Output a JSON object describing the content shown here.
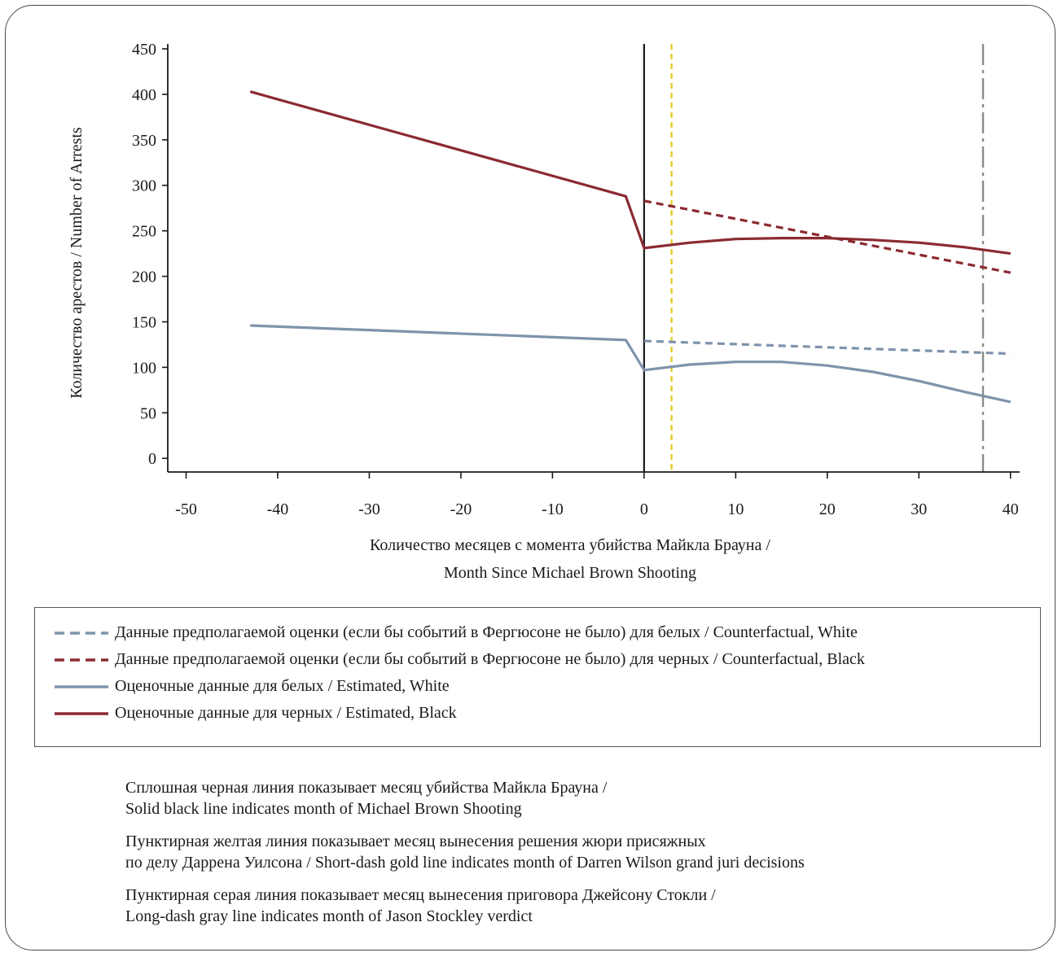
{
  "chart_data": {
    "type": "line",
    "ylabel": "Количество арестов / Number of Arrests",
    "xlabel_line1": "Количество месяцев с момента убийства Майкла Брауна /",
    "xlabel_line2": "Month Since Michael Brown Shooting",
    "xlim": [
      -52,
      41
    ],
    "ylim": [
      -15,
      450
    ],
    "x_ticks": [
      -50,
      -40,
      -30,
      -20,
      -10,
      0,
      10,
      20,
      30,
      40
    ],
    "x_tick_labels": [
      "-50",
      "-40",
      "-30",
      "-20",
      "-10",
      "0",
      "10",
      "20",
      "30",
      "40"
    ],
    "y_ticks": [
      0,
      50,
      100,
      150,
      200,
      250,
      300,
      350,
      400,
      450
    ],
    "y_tick_labels": [
      "0",
      "50",
      "100",
      "150",
      "200",
      "250",
      "300",
      "350",
      "400",
      "450"
    ],
    "series": [
      {
        "name": "Данные предполагаемой оценки (если бы событий в Фергюсоне не было) для белых / Counterfactual, White",
        "style": "dashed",
        "color": "#7f93ab",
        "x": [
          0,
          40
        ],
        "y": [
          129,
          115
        ]
      },
      {
        "name": "Данные предполагаемой оценки (если бы событий в Фергюсоне не было) для черных / Counterfactual, Black",
        "style": "dashed",
        "color": "#8b2a32",
        "x": [
          0,
          40
        ],
        "y": [
          283,
          204
        ]
      },
      {
        "name": "Оценочные данные для белых / Estimated, White",
        "style": "solid",
        "color": "#7f93ab",
        "x": [
          -43,
          -2,
          0,
          5,
          10,
          15,
          20,
          25,
          30,
          35,
          40
        ],
        "y": [
          146,
          130,
          97,
          103,
          106,
          106,
          102,
          95,
          85,
          73,
          62
        ]
      },
      {
        "name": "Оценочные данные для черных / Estimated, Black",
        "style": "solid",
        "color": "#8b2a32",
        "x": [
          -43,
          -2,
          0,
          5,
          10,
          15,
          20,
          25,
          30,
          35,
          40
        ],
        "y": [
          403,
          288,
          231,
          237,
          241,
          242,
          242,
          240,
          237,
          232,
          225
        ]
      }
    ],
    "reference_lines": [
      {
        "x": 0,
        "style": "solid",
        "color": "#1a1a1a"
      },
      {
        "x": 3,
        "style": "short-dash",
        "color": "#e3cc2a"
      },
      {
        "x": 37,
        "style": "long-dash",
        "color": "#8a8a8a"
      }
    ],
    "grid": false,
    "legend_position": "below"
  },
  "notes": [
    {
      "line1": "Сплошная черная линия показывает месяц убийства Майкла Брауна /",
      "line2": "Solid black line indicates month of Michael Brown Shooting"
    },
    {
      "line1": "Пунктирная желтая линия показывает месяц вынесения решения жюри присяжных",
      "line2": "по делу Даррена Уилсона / Short-dash gold line indicates month of Darren Wilson grand juri decisions"
    },
    {
      "line1": "Пунктирная серая линия показывает месяц вынесения приговора Джейсону Стокли /",
      "line2": "Long-dash gray line indicates month of Jason Stockley verdict"
    }
  ]
}
